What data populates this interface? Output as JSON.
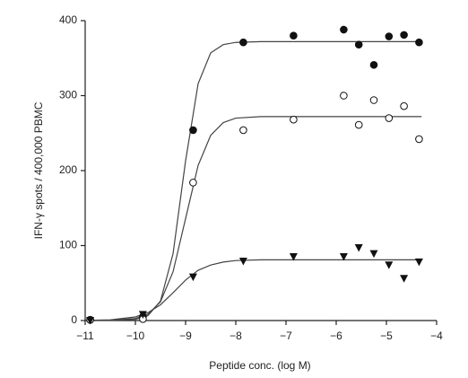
{
  "chart_data": {
    "type": "scatter",
    "x_label": "Peptide conc. (log M)",
    "y_label": "IFN-γ spots / 400,000 PBMC",
    "x": [
      -10.9,
      -9.85,
      -8.85,
      -7.85,
      -6.85,
      -5.85,
      -5.55,
      -5.25,
      -4.95,
      -4.65,
      -4.35
    ],
    "fit_x": [
      -11,
      -10.5,
      -10,
      -9.75,
      -9.5,
      -9.25,
      -9,
      -8.75,
      -8.5,
      -8.25,
      -8,
      -7.5,
      -7,
      -6,
      -5,
      -4.3
    ],
    "series": [
      {
        "color": "#111111",
        "marker": "filled-circle",
        "values": [
          1,
          5,
          254,
          371,
          380,
          388,
          368,
          341,
          379,
          381,
          371
        ],
        "fit": [
          0,
          0.2,
          1.6,
          6.5,
          26,
          89,
          213,
          316,
          357,
          368,
          371,
          372,
          372,
          372,
          372,
          372
        ]
      },
      {
        "color": "#111111",
        "marker": "open-circle",
        "values": [
          1,
          2,
          184,
          254,
          268,
          300,
          261,
          294,
          270,
          286,
          242
        ],
        "fit": [
          0,
          0.3,
          2.7,
          8.3,
          25,
          65,
          136,
          207,
          247,
          264,
          270,
          272,
          272,
          272,
          272,
          272
        ]
      },
      {
        "color": "#111111",
        "marker": "filled-triangle",
        "values": [
          0,
          8,
          58,
          79,
          85,
          85,
          97,
          89,
          74,
          56,
          78
        ],
        "fit": [
          0.2,
          0.9,
          4.8,
          10.5,
          21,
          37,
          54,
          67,
          74,
          78,
          80,
          81,
          81,
          81,
          81,
          81
        ]
      }
    ],
    "xlim": [
      -11,
      -4
    ],
    "ylim": [
      0,
      400
    ],
    "xticks": [
      {
        "value": -11,
        "label": "−11"
      },
      {
        "value": -10,
        "label": "−10"
      },
      {
        "value": -9,
        "label": "−9"
      },
      {
        "value": -8,
        "label": "−8"
      },
      {
        "value": -7,
        "label": "−7"
      },
      {
        "value": -6,
        "label": "−6"
      },
      {
        "value": -5,
        "label": "−5"
      },
      {
        "value": -4,
        "label": "−4"
      }
    ],
    "yticks": [
      0,
      100,
      200,
      300,
      400
    ],
    "grid": false
  }
}
